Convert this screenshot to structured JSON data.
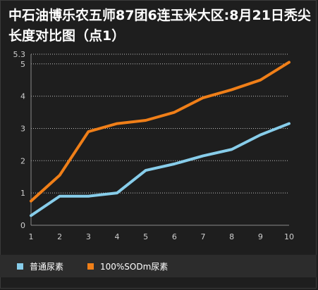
{
  "chart_data": {
    "type": "line",
    "title": "中石油博乐农五师87团6连玉米大区:8月21日秃尖长度对比图（点1）",
    "xlabel": "",
    "ylabel": "",
    "categories": [
      "1",
      "2",
      "3",
      "4",
      "5",
      "6",
      "7",
      "8",
      "9",
      "10"
    ],
    "yticks": [
      "0",
      "1",
      "2",
      "3",
      "4",
      "5",
      "5.3"
    ],
    "ylim": [
      0,
      5.3
    ],
    "grid": "horizontal-dotted",
    "legend_position": "bottom-left",
    "series": [
      {
        "name": "普通尿素",
        "color": "#87cdea",
        "values": [
          0.3,
          0.9,
          0.9,
          1.0,
          1.7,
          1.9,
          2.15,
          2.35,
          2.8,
          3.15
        ]
      },
      {
        "name": "100%SODm尿素",
        "color": "#f07f18",
        "values": [
          0.75,
          1.55,
          2.9,
          3.15,
          3.25,
          3.5,
          3.95,
          4.2,
          4.5,
          5.05
        ]
      }
    ]
  }
}
